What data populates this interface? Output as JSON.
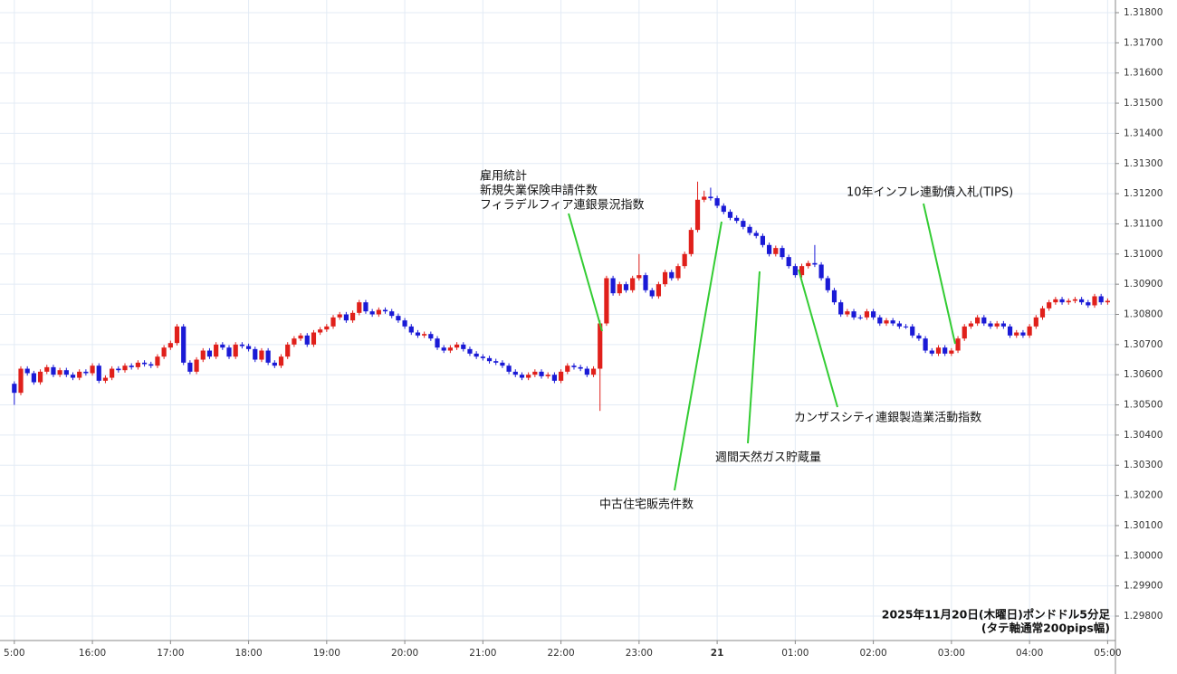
{
  "chart_data": {
    "type": "candlestick",
    "up_color": "#e0201b",
    "down_color": "#1a1ad6",
    "grid": true,
    "xlim": [
      -11,
      846
    ],
    "ylim": [
      1.29719,
      1.31842
    ],
    "xticks": [
      {
        "value": 0,
        "label": "5:00"
      },
      {
        "value": 60,
        "label": "16:00"
      },
      {
        "value": 120,
        "label": "17:00"
      },
      {
        "value": 180,
        "label": "18:00"
      },
      {
        "value": 240,
        "label": "19:00"
      },
      {
        "value": 300,
        "label": "20:00"
      },
      {
        "value": 360,
        "label": "21:00"
      },
      {
        "value": 420,
        "label": "22:00"
      },
      {
        "value": 480,
        "label": "23:00"
      },
      {
        "value": 540,
        "label": "21"
      },
      {
        "value": 600,
        "label": "01:00"
      },
      {
        "value": 660,
        "label": "02:00"
      },
      {
        "value": 720,
        "label": "03:00"
      },
      {
        "value": 780,
        "label": "04:00"
      },
      {
        "value": 840,
        "label": "05:00"
      }
    ],
    "yticks": [
      {
        "value": 1.298,
        "label": "1.29800"
      },
      {
        "value": 1.299,
        "label": "1.29900"
      },
      {
        "value": 1.3,
        "label": "1.30000"
      },
      {
        "value": 1.301,
        "label": "1.30100"
      },
      {
        "value": 1.302,
        "label": "1.30200"
      },
      {
        "value": 1.303,
        "label": "1.30300"
      },
      {
        "value": 1.304,
        "label": "1.30400"
      },
      {
        "value": 1.305,
        "label": "1.30500"
      },
      {
        "value": 1.306,
        "label": "1.30600"
      },
      {
        "value": 1.307,
        "label": "1.30700"
      },
      {
        "value": 1.308,
        "label": "1.30800"
      },
      {
        "value": 1.309,
        "label": "1.30900"
      },
      {
        "value": 1.31,
        "label": "1.31000"
      },
      {
        "value": 1.311,
        "label": "1.31100"
      },
      {
        "value": 1.312,
        "label": "1.31200"
      },
      {
        "value": 1.313,
        "label": "1.31300"
      },
      {
        "value": 1.314,
        "label": "1.31400"
      },
      {
        "value": 1.315,
        "label": "1.31500"
      },
      {
        "value": 1.316,
        "label": "1.31600"
      },
      {
        "value": 1.317,
        "label": "1.31700"
      },
      {
        "value": 1.318,
        "label": "1.31800"
      }
    ],
    "x": [
      0,
      5,
      10,
      15,
      20,
      25,
      30,
      35,
      40,
      45,
      50,
      55,
      60,
      65,
      70,
      75,
      80,
      85,
      90,
      95,
      100,
      105,
      110,
      115,
      120,
      125,
      130,
      135,
      140,
      145,
      150,
      155,
      160,
      165,
      170,
      175,
      180,
      185,
      190,
      195,
      200,
      205,
      210,
      215,
      220,
      225,
      230,
      235,
      240,
      245,
      250,
      255,
      260,
      265,
      270,
      275,
      280,
      285,
      290,
      295,
      300,
      305,
      310,
      315,
      320,
      325,
      330,
      335,
      340,
      345,
      350,
      355,
      360,
      365,
      370,
      375,
      380,
      385,
      390,
      395,
      400,
      405,
      410,
      415,
      420,
      425,
      430,
      435,
      440,
      445,
      450,
      455,
      460,
      465,
      470,
      475,
      480,
      485,
      490,
      495,
      500,
      505,
      510,
      515,
      520,
      525,
      530,
      535,
      540,
      545,
      550,
      555,
      560,
      565,
      570,
      575,
      580,
      585,
      590,
      595,
      600,
      605,
      610,
      615,
      620,
      625,
      630,
      635,
      640,
      645,
      650,
      655,
      660,
      665,
      670,
      675,
      680,
      685,
      690,
      695,
      700,
      705,
      710,
      715,
      720,
      725,
      730,
      735,
      740,
      745,
      750,
      755,
      760,
      765,
      770,
      775,
      780,
      785,
      790,
      795,
      800,
      805,
      810,
      815,
      820,
      825,
      830,
      835,
      840
    ],
    "candles": [
      [
        1.3057,
        1.30578,
        1.305,
        1.3054
      ],
      [
        1.3054,
        1.30628,
        1.30532,
        1.3062
      ],
      [
        1.3062,
        1.30628,
        1.30597,
        1.30605
      ],
      [
        1.30605,
        1.30613,
        1.30567,
        1.30575
      ],
      [
        1.30575,
        1.30618,
        1.30567,
        1.3061
      ],
      [
        1.3061,
        1.30633,
        1.30602,
        1.30625
      ],
      [
        1.30625,
        1.30633,
        1.30592,
        1.306
      ],
      [
        1.306,
        1.30623,
        1.30592,
        1.30615
      ],
      [
        1.30615,
        1.30623,
        1.30592,
        1.306
      ],
      [
        1.306,
        1.30608,
        1.30582,
        1.3059
      ],
      [
        1.3059,
        1.30618,
        1.30582,
        1.3061
      ],
      [
        1.3061,
        1.30618,
        1.30597,
        1.30605
      ],
      [
        1.30605,
        1.30638,
        1.30597,
        1.3063
      ],
      [
        1.3063,
        1.30638,
        1.30572,
        1.3058
      ],
      [
        1.3058,
        1.30598,
        1.30572,
        1.3059
      ],
      [
        1.3059,
        1.30628,
        1.30582,
        1.3062
      ],
      [
        1.3062,
        1.30628,
        1.30607,
        1.30615
      ],
      [
        1.30615,
        1.30638,
        1.30607,
        1.3063
      ],
      [
        1.3063,
        1.30638,
        1.30617,
        1.30625
      ],
      [
        1.30625,
        1.30648,
        1.30617,
        1.3064
      ],
      [
        1.3064,
        1.30648,
        1.30627,
        1.30635
      ],
      [
        1.30635,
        1.30643,
        1.30622,
        1.3063
      ],
      [
        1.3063,
        1.30668,
        1.30622,
        1.3066
      ],
      [
        1.3066,
        1.30698,
        1.30652,
        1.3069
      ],
      [
        1.3069,
        1.30713,
        1.30682,
        1.30705
      ],
      [
        1.30705,
        1.30768,
        1.30697,
        1.3076
      ],
      [
        1.3076,
        1.30768,
        1.30632,
        1.3064
      ],
      [
        1.3064,
        1.30648,
        1.30602,
        1.3061
      ],
      [
        1.3061,
        1.30658,
        1.30602,
        1.3065
      ],
      [
        1.3065,
        1.30688,
        1.30642,
        1.3068
      ],
      [
        1.3068,
        1.30688,
        1.30652,
        1.3066
      ],
      [
        1.3066,
        1.30708,
        1.30652,
        1.307
      ],
      [
        1.307,
        1.30708,
        1.30682,
        1.3069
      ],
      [
        1.3069,
        1.30698,
        1.30652,
        1.3066
      ],
      [
        1.3066,
        1.30708,
        1.30652,
        1.307
      ],
      [
        1.307,
        1.30708,
        1.30687,
        1.30695
      ],
      [
        1.30695,
        1.30703,
        1.30677,
        1.30685
      ],
      [
        1.30685,
        1.30693,
        1.30642,
        1.3065
      ],
      [
        1.3065,
        1.30688,
        1.30642,
        1.3068
      ],
      [
        1.3068,
        1.30688,
        1.30632,
        1.3064
      ],
      [
        1.3064,
        1.30648,
        1.30622,
        1.3063
      ],
      [
        1.3063,
        1.30668,
        1.30622,
        1.3066
      ],
      [
        1.3066,
        1.30708,
        1.30652,
        1.307
      ],
      [
        1.307,
        1.30728,
        1.30692,
        1.3072
      ],
      [
        1.3072,
        1.30738,
        1.30712,
        1.3073
      ],
      [
        1.3073,
        1.30738,
        1.30692,
        1.307
      ],
      [
        1.307,
        1.30748,
        1.30692,
        1.3074
      ],
      [
        1.3074,
        1.30758,
        1.30732,
        1.3075
      ],
      [
        1.3075,
        1.30768,
        1.30742,
        1.3076
      ],
      [
        1.3076,
        1.30798,
        1.30752,
        1.3079
      ],
      [
        1.3079,
        1.30808,
        1.30782,
        1.308
      ],
      [
        1.308,
        1.30808,
        1.30772,
        1.3078
      ],
      [
        1.3078,
        1.30813,
        1.30772,
        1.30805
      ],
      [
        1.30805,
        1.30848,
        1.30797,
        1.3084
      ],
      [
        1.3084,
        1.30848,
        1.30802,
        1.3081
      ],
      [
        1.3081,
        1.30818,
        1.30792,
        1.308
      ],
      [
        1.308,
        1.30823,
        1.30792,
        1.30815
      ],
      [
        1.30815,
        1.30823,
        1.30802,
        1.3081
      ],
      [
        1.3081,
        1.30818,
        1.30787,
        1.30795
      ],
      [
        1.30795,
        1.30803,
        1.30772,
        1.3078
      ],
      [
        1.3078,
        1.30788,
        1.30752,
        1.3076
      ],
      [
        1.3076,
        1.30768,
        1.30732,
        1.3074
      ],
      [
        1.3074,
        1.30748,
        1.30722,
        1.3073
      ],
      [
        1.3073,
        1.30743,
        1.30722,
        1.30735
      ],
      [
        1.30735,
        1.30743,
        1.30712,
        1.3072
      ],
      [
        1.3072,
        1.30728,
        1.30682,
        1.3069
      ],
      [
        1.3069,
        1.30698,
        1.30672,
        1.3068
      ],
      [
        1.3068,
        1.30698,
        1.30672,
        1.3069
      ],
      [
        1.3069,
        1.30708,
        1.30682,
        1.307
      ],
      [
        1.307,
        1.30708,
        1.30677,
        1.30685
      ],
      [
        1.30685,
        1.30693,
        1.30662,
        1.3067
      ],
      [
        1.3067,
        1.30678,
        1.30652,
        1.3066
      ],
      [
        1.3066,
        1.30668,
        1.30647,
        1.30655
      ],
      [
        1.30655,
        1.30663,
        1.30637,
        1.30645
      ],
      [
        1.30645,
        1.30653,
        1.30632,
        1.3064
      ],
      [
        1.3064,
        1.30648,
        1.30622,
        1.3063
      ],
      [
        1.3063,
        1.30638,
        1.30602,
        1.3061
      ],
      [
        1.3061,
        1.30618,
        1.30592,
        1.306
      ],
      [
        1.306,
        1.30608,
        1.30582,
        1.3059
      ],
      [
        1.3059,
        1.30608,
        1.30582,
        1.306
      ],
      [
        1.306,
        1.30618,
        1.30592,
        1.3061
      ],
      [
        1.3061,
        1.30618,
        1.30587,
        1.30595
      ],
      [
        1.30595,
        1.30608,
        1.30587,
        1.306
      ],
      [
        1.306,
        1.30608,
        1.30572,
        1.3058
      ],
      [
        1.3058,
        1.30618,
        1.30572,
        1.3061
      ],
      [
        1.3061,
        1.30638,
        1.30602,
        1.3063
      ],
      [
        1.3063,
        1.30638,
        1.30617,
        1.30625
      ],
      [
        1.30625,
        1.30633,
        1.30612,
        1.3062
      ],
      [
        1.3062,
        1.30628,
        1.30592,
        1.306
      ],
      [
        1.306,
        1.30628,
        1.30592,
        1.3062
      ],
      [
        1.3062,
        1.3078,
        1.3048,
        1.3077
      ],
      [
        1.3077,
        1.30928,
        1.30762,
        1.3092
      ],
      [
        1.3092,
        1.30928,
        1.30862,
        1.3087
      ],
      [
        1.3087,
        1.30908,
        1.30862,
        1.309
      ],
      [
        1.309,
        1.30908,
        1.30872,
        1.3088
      ],
      [
        1.3088,
        1.30928,
        1.30872,
        1.3092
      ],
      [
        1.3092,
        1.31,
        1.30912,
        1.3093
      ],
      [
        1.3093,
        1.30938,
        1.30872,
        1.3088
      ],
      [
        1.3088,
        1.30888,
        1.30852,
        1.3086
      ],
      [
        1.3086,
        1.30908,
        1.30852,
        1.309
      ],
      [
        1.309,
        1.30948,
        1.30892,
        1.3094
      ],
      [
        1.3094,
        1.30948,
        1.30912,
        1.3092
      ],
      [
        1.3092,
        1.30968,
        1.30912,
        1.3096
      ],
      [
        1.3096,
        1.31008,
        1.30952,
        1.31
      ],
      [
        1.31,
        1.31088,
        1.30992,
        1.3108
      ],
      [
        1.3108,
        1.3124,
        1.31072,
        1.3118
      ],
      [
        1.3118,
        1.3121,
        1.31172,
        1.3119
      ],
      [
        1.3119,
        1.3122,
        1.31177,
        1.31185
      ],
      [
        1.31185,
        1.31193,
        1.31152,
        1.3116
      ],
      [
        1.3116,
        1.31168,
        1.31132,
        1.3114
      ],
      [
        1.3114,
        1.31148,
        1.31112,
        1.3112
      ],
      [
        1.3112,
        1.31128,
        1.31102,
        1.3111
      ],
      [
        1.3111,
        1.31118,
        1.31082,
        1.3109
      ],
      [
        1.3109,
        1.31098,
        1.31062,
        1.3107
      ],
      [
        1.3107,
        1.31078,
        1.31052,
        1.3106
      ],
      [
        1.3106,
        1.31068,
        1.31022,
        1.3103
      ],
      [
        1.3103,
        1.31038,
        1.30992,
        1.31
      ],
      [
        1.31,
        1.31028,
        1.30992,
        1.3102
      ],
      [
        1.3102,
        1.31028,
        1.30982,
        1.3099
      ],
      [
        1.3099,
        1.30998,
        1.30952,
        1.3096
      ],
      [
        1.3096,
        1.30968,
        1.30922,
        1.3093
      ],
      [
        1.3093,
        1.30968,
        1.30922,
        1.3096
      ],
      [
        1.3096,
        1.30978,
        1.30952,
        1.3097
      ],
      [
        1.3097,
        1.3103,
        1.30957,
        1.30965
      ],
      [
        1.30965,
        1.30973,
        1.30912,
        1.3092
      ],
      [
        1.3092,
        1.30928,
        1.30872,
        1.3088
      ],
      [
        1.3088,
        1.30888,
        1.30832,
        1.3084
      ],
      [
        1.3084,
        1.30848,
        1.30792,
        1.308
      ],
      [
        1.308,
        1.30818,
        1.30792,
        1.3081
      ],
      [
        1.3081,
        1.30818,
        1.30782,
        1.3079
      ],
      [
        1.3079,
        1.30798,
        1.30782,
        1.3079
      ],
      [
        1.3079,
        1.30818,
        1.30782,
        1.3081
      ],
      [
        1.3081,
        1.30818,
        1.30782,
        1.3079
      ],
      [
        1.3079,
        1.30798,
        1.30762,
        1.3077
      ],
      [
        1.3077,
        1.30788,
        1.30762,
        1.3078
      ],
      [
        1.3078,
        1.30788,
        1.30762,
        1.3077
      ],
      [
        1.3077,
        1.30778,
        1.30752,
        1.3076
      ],
      [
        1.3076,
        1.30768,
        1.30752,
        1.3076
      ],
      [
        1.3076,
        1.30768,
        1.30722,
        1.3073
      ],
      [
        1.3073,
        1.30738,
        1.30712,
        1.3072
      ],
      [
        1.3072,
        1.30728,
        1.30672,
        1.3068
      ],
      [
        1.3068,
        1.30688,
        1.30662,
        1.3067
      ],
      [
        1.3067,
        1.30698,
        1.30662,
        1.3069
      ],
      [
        1.3069,
        1.30698,
        1.30662,
        1.3067
      ],
      [
        1.3067,
        1.30688,
        1.30662,
        1.3068
      ],
      [
        1.3068,
        1.30728,
        1.30672,
        1.3072
      ],
      [
        1.3072,
        1.30768,
        1.30712,
        1.3076
      ],
      [
        1.3076,
        1.30778,
        1.30752,
        1.3077
      ],
      [
        1.3077,
        1.30798,
        1.30762,
        1.3079
      ],
      [
        1.3079,
        1.30798,
        1.30762,
        1.3077
      ],
      [
        1.3077,
        1.30778,
        1.30752,
        1.3076
      ],
      [
        1.3076,
        1.30778,
        1.30752,
        1.3077
      ],
      [
        1.3077,
        1.30778,
        1.30752,
        1.3076
      ],
      [
        1.3076,
        1.30768,
        1.30722,
        1.3073
      ],
      [
        1.3073,
        1.30748,
        1.30722,
        1.3074
      ],
      [
        1.3074,
        1.30748,
        1.30722,
        1.3073
      ],
      [
        1.3073,
        1.30768,
        1.30722,
        1.3076
      ],
      [
        1.3076,
        1.30798,
        1.30752,
        1.3079
      ],
      [
        1.3079,
        1.30828,
        1.30782,
        1.3082
      ],
      [
        1.3082,
        1.30848,
        1.30812,
        1.3084
      ],
      [
        1.3084,
        1.30858,
        1.30832,
        1.3085
      ],
      [
        1.3085,
        1.30858,
        1.30832,
        1.3084
      ],
      [
        1.3084,
        1.30853,
        1.30832,
        1.30845
      ],
      [
        1.30845,
        1.30858,
        1.30837,
        1.3085
      ],
      [
        1.3085,
        1.30858,
        1.30832,
        1.3084
      ],
      [
        1.3084,
        1.30848,
        1.30822,
        1.3083
      ],
      [
        1.3083,
        1.30868,
        1.30822,
        1.3086
      ],
      [
        1.3086,
        1.30868,
        1.30832,
        1.3084
      ],
      [
        1.3084,
        1.30853,
        1.30832,
        1.30845
      ]
    ],
    "annotations": [
      {
        "lines": [
          "雇用統計",
          "新規失業保険申請件数",
          "フィラデルフィア連銀景況指数"
        ]
      },
      {
        "lines": [
          "中古住宅販売件数"
        ]
      },
      {
        "lines": [
          "週間天然ガス貯蔵量"
        ]
      },
      {
        "lines": [
          "カンザスシティ連銀製造業活動指数"
        ]
      },
      {
        "lines": [
          "10年インフレ連動債入札(TIPS)"
        ]
      }
    ],
    "caption": [
      "2025年11月20日(木曜日)ポンドドル5分足",
      "(タテ軸通常200pips幅)"
    ]
  }
}
